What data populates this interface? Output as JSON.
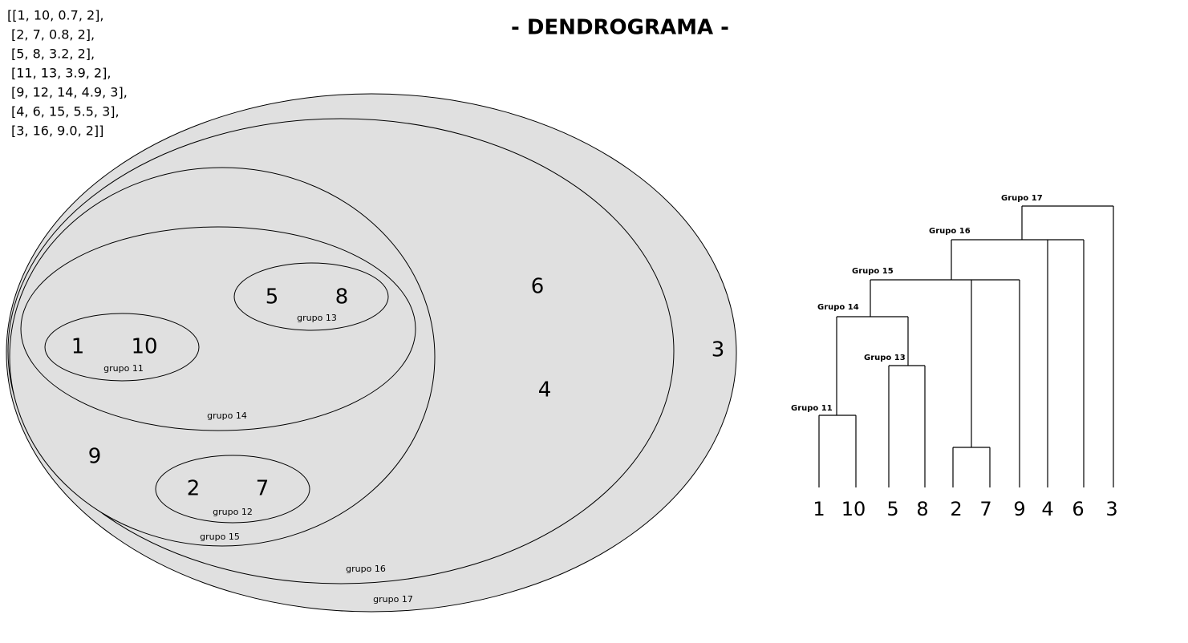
{
  "title": "- DENDROGRAMA -",
  "matrix": [
    "[[1, 10, 0.7, 2],",
    "[2, 7, 0.8, 2],",
    "[5, 8, 3.2, 2],",
    "[11, 13, 3.9, 2],",
    "[9, 12, 14, 4.9, 3],",
    "[4, 6, 15, 5.5, 3],",
    "[3, 16, 9.0, 2]]"
  ],
  "venn": {
    "points": [
      "1",
      "10",
      "5",
      "8",
      "2",
      "7",
      "9",
      "6",
      "4",
      "3"
    ],
    "groups": [
      "grupo 11",
      "grupo 12",
      "grupo 13",
      "grupo 14",
      "grupo 15",
      "grupo 16",
      "grupo 17"
    ]
  },
  "dendrogram": {
    "leaves": [
      "1",
      "10",
      "5",
      "8",
      "2",
      "7",
      "9",
      "4",
      "6",
      "3"
    ],
    "groups": [
      "Grupo 11",
      "Grupo 13",
      "Grupo 14",
      "Grupo 15",
      "Grupo 16",
      "Grupo 17"
    ]
  }
}
